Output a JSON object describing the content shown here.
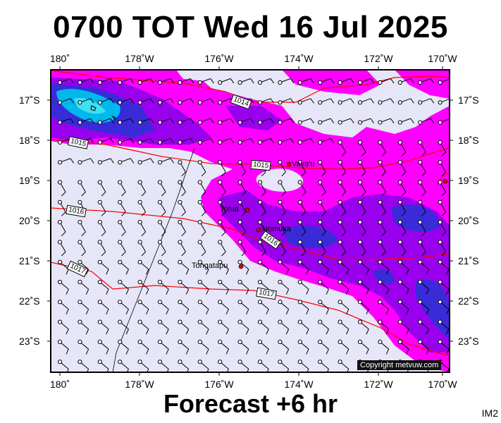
{
  "title": "0700 TOT Wed 16 Jul 2025",
  "footer": "Forecast +6 hr",
  "tag": "IM2",
  "copyright": "Copyright metvuw.com",
  "longitudes": [
    "180˚",
    "178˚W",
    "176˚W",
    "174˚W",
    "172˚W",
    "170˚W"
  ],
  "latitudes": [
    "17˚S",
    "18˚S",
    "19˚S",
    "20˚S",
    "21˚S",
    "22˚S",
    "23˚S"
  ],
  "towns": [
    {
      "name": "Vava'u"
    },
    {
      "name": "Tofua"
    },
    {
      "name": "Nomuka"
    },
    {
      "name": "Tongatapu"
    }
  ],
  "isobar_labels": [
    "1014",
    "1015",
    "1015",
    "1016",
    "1016",
    "1017",
    "1017"
  ],
  "colors": {
    "background_fill": "#e6e6f8",
    "rain_light": "#ff00ff",
    "rain_mid": "#9900ee",
    "rain_heavy": "#3a2bd9",
    "rain_extreme": "#00c8f0",
    "isobar_line": "#ff0000",
    "town_marker": "#dd0000"
  },
  "icons": {
    "wind_barb": "wind-barb-icon",
    "town_marker": "town-dot-icon"
  }
}
